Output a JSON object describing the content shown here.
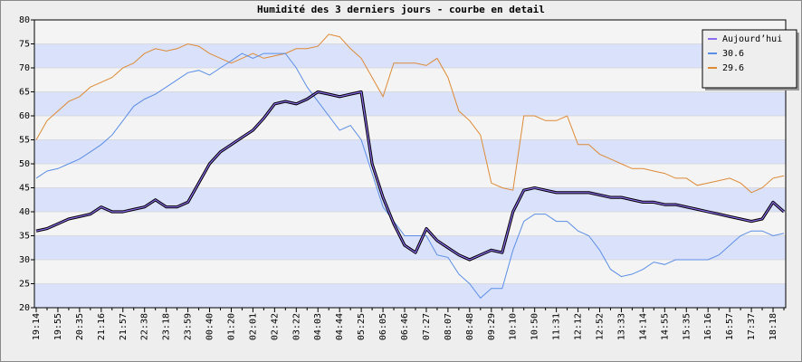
{
  "chart_data": {
    "type": "line",
    "title": "Humidité des 3 derniers jours - courbe en detail",
    "categories": [
      "19:14",
      null,
      "19:55",
      null,
      "20:35",
      null,
      "21:16",
      null,
      "21:57",
      null,
      "22:38",
      null,
      "23:18",
      null,
      "23:59",
      null,
      "00:40",
      null,
      "01:20",
      null,
      "02:01",
      null,
      "02:42",
      null,
      "03:22",
      null,
      "04:03",
      null,
      "04:44",
      null,
      "05:25",
      null,
      "06:05",
      null,
      "06:46",
      null,
      "07:27",
      null,
      "08:07",
      null,
      "08:48",
      null,
      "09:29",
      null,
      "10:10",
      null,
      "10:50",
      null,
      "11:31",
      null,
      "12:12",
      null,
      "12:52",
      null,
      "13:33",
      null,
      "14:14",
      null,
      "14:55",
      null,
      "15:35",
      null,
      "16:16",
      null,
      "16:57",
      null,
      "17:37",
      null,
      "18:18",
      null
    ],
    "series": [
      {
        "name": "Aujourd’hui",
        "color": "#8e6cf0",
        "outline": "#000000",
        "values": [
          36,
          36.5,
          37.5,
          38.5,
          39,
          39.5,
          41,
          40,
          40,
          40.5,
          41,
          42.5,
          41,
          41,
          42,
          46,
          50,
          52.5,
          54,
          55.5,
          57,
          59.5,
          62.5,
          63,
          62.5,
          63.5,
          65,
          64.5,
          64,
          64.5,
          65,
          50,
          43,
          37.5,
          33,
          31.5,
          36.5,
          34,
          32.5,
          31,
          30,
          31,
          32,
          31.5,
          40,
          44.5,
          45,
          44.5,
          44,
          44,
          44,
          44,
          43.5,
          43,
          43,
          42.5,
          42,
          42,
          41.5,
          41.5,
          41,
          40.5,
          40,
          39.5,
          39,
          38.5,
          38,
          38.5,
          42,
          40
        ]
      },
      {
        "name": "30.6",
        "color": "#5b8ee6",
        "values": [
          47,
          48.5,
          49,
          50,
          51,
          52.5,
          54,
          56,
          59,
          62,
          63.5,
          64.5,
          66,
          67.5,
          69,
          69.5,
          68.5,
          70,
          71.5,
          73,
          72,
          73,
          73,
          73,
          70,
          66,
          63,
          60,
          57,
          58,
          55,
          48,
          41,
          38,
          35,
          35,
          35,
          31,
          30.5,
          27,
          25,
          22,
          24,
          24,
          32,
          38,
          39.5,
          39.5,
          38,
          38,
          36,
          35,
          32,
          28,
          26.5,
          27,
          28,
          29.5,
          29,
          30,
          30,
          30,
          30,
          31,
          33,
          35,
          36,
          36,
          35,
          35.5
        ]
      },
      {
        "name": "29.6",
        "color": "#dd8a35",
        "values": [
          55,
          59,
          61,
          63,
          64,
          66,
          67,
          68,
          70,
          71,
          73,
          74,
          73.5,
          74,
          75,
          74.5,
          73,
          72,
          71,
          72,
          73,
          72,
          72.5,
          73,
          74,
          74,
          74.5,
          77,
          76.5,
          74,
          72,
          68,
          64,
          71,
          71,
          71,
          70.5,
          72,
          68,
          61,
          59,
          56,
          46,
          45,
          44.5,
          60,
          60,
          59,
          59,
          60,
          54,
          54,
          52,
          51,
          50,
          49,
          49,
          48.5,
          48,
          47,
          47,
          45.5,
          46,
          46.5,
          47,
          46,
          44,
          45,
          47,
          47.5
        ]
      }
    ],
    "ylim": [
      20,
      80
    ],
    "yticks": [
      20,
      25,
      30,
      35,
      40,
      45,
      50,
      55,
      60,
      65,
      70,
      75,
      80
    ],
    "band_colors": [
      "#f4f4f4",
      "#dae2fb"
    ],
    "legend": "top-right"
  }
}
